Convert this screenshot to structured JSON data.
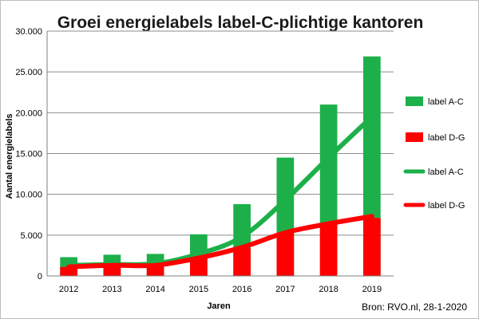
{
  "chart_data": {
    "type": "bar",
    "title": "Groei energielabels label-C-plichtige kantoren",
    "xlabel": "Jaren",
    "ylabel": "Aantal energielabels",
    "ylim": [
      0,
      30000
    ],
    "yticks": [
      "0",
      "5.000",
      "10.000",
      "15.000",
      "20.000",
      "25.000",
      "30.000"
    ],
    "ytick_values": [
      0,
      5000,
      10000,
      15000,
      20000,
      25000,
      30000
    ],
    "categories": [
      "2012",
      "2013",
      "2014",
      "2015",
      "2016",
      "2017",
      "2018",
      "2019"
    ],
    "grid": true,
    "legend_position": "right",
    "series": [
      {
        "name": "label A-C",
        "kind": "bar",
        "color": "#1db04a",
        "values": [
          2300,
          2600,
          2700,
          5100,
          8800,
          14500,
          21000,
          26900
        ]
      },
      {
        "name": "label D-G",
        "kind": "bar",
        "color": "#ff0000",
        "values": [
          1100,
          1300,
          1300,
          2400,
          3400,
          5300,
          6300,
          7100
        ]
      },
      {
        "name": "label A-C",
        "kind": "line",
        "color": "#1db04a",
        "values": [
          1300,
          1400,
          1500,
          2700,
          4800,
          9300,
          14500,
          19500
        ]
      },
      {
        "name": "label D-G",
        "kind": "line",
        "color": "#ff0000",
        "values": [
          1100,
          1300,
          1300,
          2200,
          3500,
          5300,
          6400,
          7300
        ]
      }
    ],
    "source": "Bron: RVO.nl, 28-1-2020"
  }
}
